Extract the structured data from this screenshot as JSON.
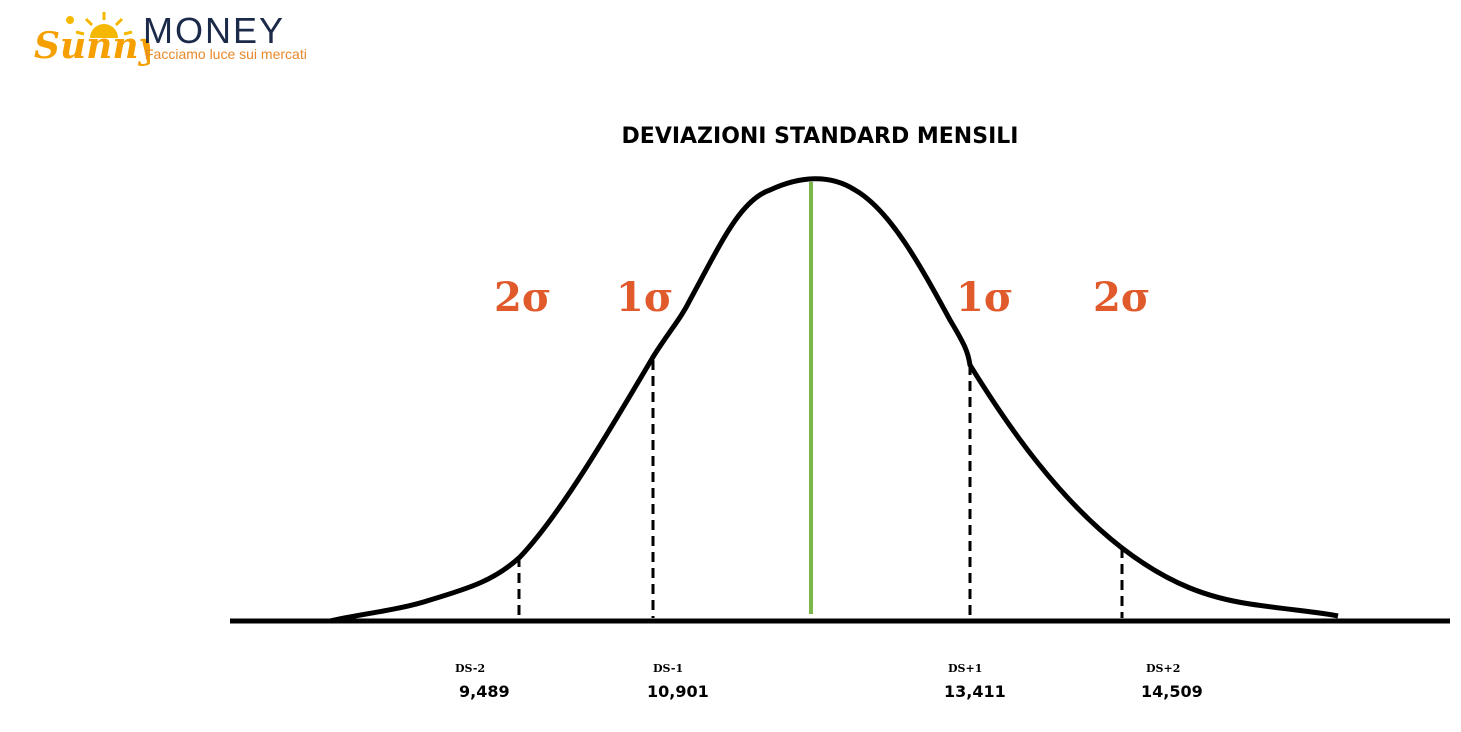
{
  "logo": {
    "brand_script": "Sunny",
    "brand_word": "MONEY",
    "tagline": "Facciamo luce sui mercati"
  },
  "title": "DEVIAZIONI STANDARD MENSILI",
  "sigma_labels": {
    "left_2": "2σ",
    "left_1": "1σ",
    "right_1": "1σ",
    "right_2": "2σ"
  },
  "markers": [
    {
      "label": "DS-2",
      "value": "9,489"
    },
    {
      "label": "DS-1",
      "value": "10,901"
    },
    {
      "label": "DS+1",
      "value": "13,411"
    },
    {
      "label": "DS+2",
      "value": "14,509"
    }
  ],
  "colors": {
    "curve": "#000000",
    "mean_line": "#7ab648",
    "sigma_text": "#e05a2b",
    "logo_orange": "#e8882a",
    "logo_yellow": "#f5b800",
    "logo_navy": "#1c2a4a"
  }
}
